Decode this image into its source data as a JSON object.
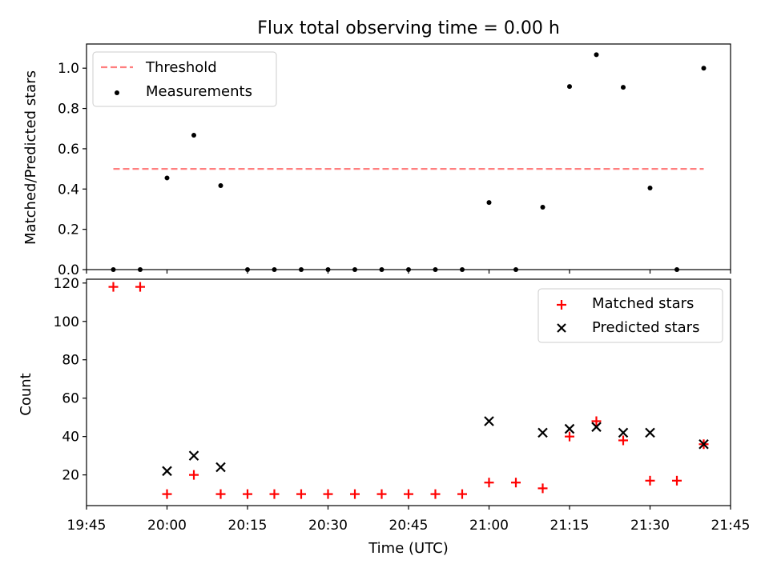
{
  "chart_data": [
    {
      "type": "scatter",
      "title": "Flux total observing time = 0.00 h",
      "xlabel": "",
      "ylabel": "Matched/Predicted stars",
      "xlim": [
        "19:45",
        "21:45"
      ],
      "ylim": [
        0,
        1.12
      ],
      "yticks": [
        "0.0",
        "0.2",
        "0.4",
        "0.6",
        "0.8",
        "1.0"
      ],
      "grid": false,
      "legend": {
        "placement": "top-left",
        "entries": [
          "Threshold",
          "Measurements"
        ]
      },
      "series": [
        {
          "name": "Threshold",
          "style": "dashed-line",
          "color": "#ff7f7f",
          "x": [
            "19:50",
            "21:40"
          ],
          "y": [
            0.5,
            0.5
          ]
        },
        {
          "name": "Measurements",
          "style": "dot",
          "color": "#000000",
          "x": [
            "19:50",
            "19:55",
            "20:00",
            "20:05",
            "20:10",
            "20:15",
            "20:20",
            "20:25",
            "20:30",
            "20:35",
            "20:40",
            "20:45",
            "20:50",
            "20:55",
            "21:00",
            "21:05",
            "21:10",
            "21:15",
            "21:20",
            "21:25",
            "21:30",
            "21:35",
            "21:40"
          ],
          "y": [
            0,
            0,
            0.455,
            0.667,
            0.417,
            0,
            0,
            0,
            0,
            0,
            0,
            0,
            0,
            0,
            0.333,
            0,
            0.31,
            0.909,
            1.067,
            0.905,
            0.405,
            0,
            1.0
          ]
        }
      ]
    },
    {
      "type": "scatter",
      "title": "",
      "xlabel": "Time (UTC)",
      "ylabel": "Count",
      "xlim": [
        "19:45",
        "21:45"
      ],
      "xticks": [
        "19:45",
        "20:00",
        "20:15",
        "20:30",
        "20:45",
        "21:00",
        "21:15",
        "21:30",
        "21:45"
      ],
      "ylim": [
        4,
        122
      ],
      "yticks": [
        "20",
        "40",
        "60",
        "80",
        "100",
        "120"
      ],
      "grid": false,
      "legend": {
        "placement": "top-right",
        "entries": [
          "Matched stars",
          "Predicted stars"
        ]
      },
      "series": [
        {
          "name": "Matched stars",
          "marker": "plus",
          "color": "#ff0000",
          "x": [
            "19:50",
            "19:55",
            "20:00",
            "20:05",
            "20:10",
            "20:15",
            "20:20",
            "20:25",
            "20:30",
            "20:35",
            "20:40",
            "20:45",
            "20:50",
            "20:55",
            "21:00",
            "21:05",
            "21:10",
            "21:15",
            "21:20",
            "21:25",
            "21:30",
            "21:35",
            "21:40"
          ],
          "y": [
            118,
            118,
            10,
            20,
            10,
            10,
            10,
            10,
            10,
            10,
            10,
            10,
            10,
            10,
            16,
            16,
            13,
            40,
            48,
            38,
            17,
            17,
            36
          ]
        },
        {
          "name": "Predicted stars",
          "marker": "x",
          "color": "#000000",
          "x": [
            "20:00",
            "20:05",
            "20:10",
            "21:00",
            "21:10",
            "21:15",
            "21:20",
            "21:25",
            "21:30",
            "21:40"
          ],
          "y": [
            22,
            30,
            24,
            48,
            42,
            44,
            45,
            42,
            42,
            36
          ]
        }
      ]
    }
  ]
}
